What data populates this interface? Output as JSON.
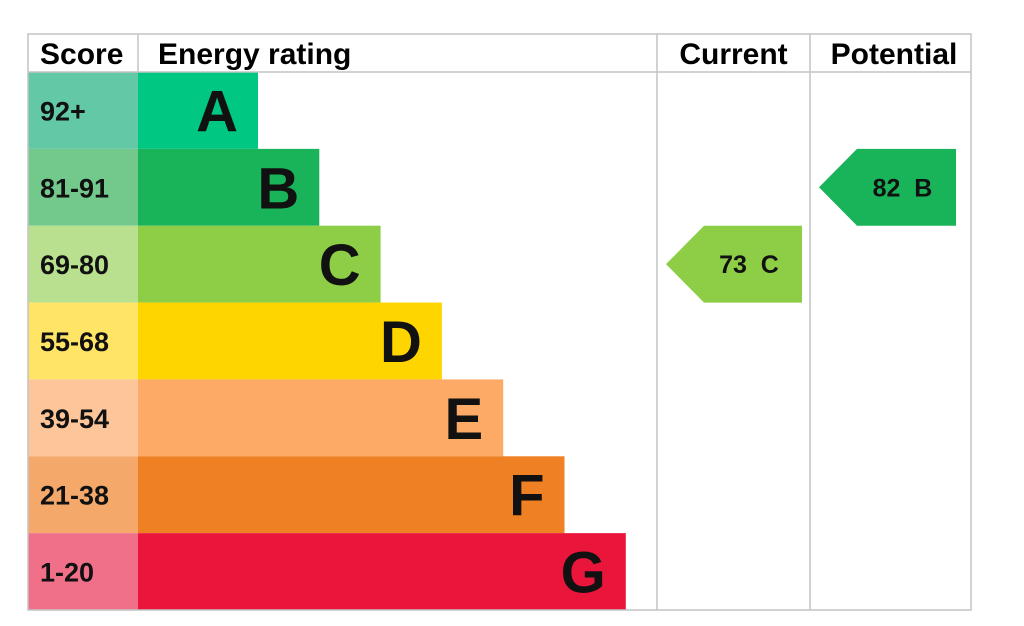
{
  "chart_data": {
    "type": "bar",
    "header": {
      "score": "Score",
      "energy_rating": "Energy rating",
      "current": "Current",
      "potential": "Potential"
    },
    "bands": [
      {
        "score_range": "92+",
        "letter": "A",
        "bar_color": "#00c781",
        "score_color": "#63c8a6"
      },
      {
        "score_range": "81-91",
        "letter": "B",
        "bar_color": "#19b459",
        "score_color": "#73c98c"
      },
      {
        "score_range": "69-80",
        "letter": "C",
        "bar_color": "#8dce46",
        "score_color": "#b9e08e"
      },
      {
        "score_range": "55-68",
        "letter": "D",
        "bar_color": "#ffd500",
        "score_color": "#ffe466"
      },
      {
        "score_range": "39-54",
        "letter": "E",
        "bar_color": "#fcaa65",
        "score_color": "#fdc59a"
      },
      {
        "score_range": "21-38",
        "letter": "F",
        "bar_color": "#ef8023",
        "score_color": "#f4a86a"
      },
      {
        "score_range": "1-20",
        "letter": "G",
        "bar_color": "#e9153b",
        "score_color": "#f0708a"
      }
    ],
    "current": {
      "value": 73,
      "band": "C",
      "label": "73  C",
      "color": "#8dce46"
    },
    "potential": {
      "value": 82,
      "band": "B",
      "label": "82  B",
      "color": "#19b459"
    }
  }
}
